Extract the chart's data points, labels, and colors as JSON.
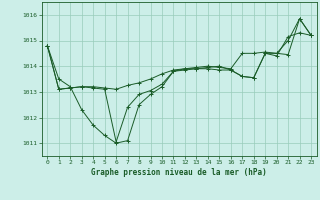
{
  "title": "Graphe pression niveau de la mer (hPa)",
  "bg_color": "#cceee8",
  "grid_color": "#99ccbb",
  "line_color": "#1a5c28",
  "xlim": [
    -0.5,
    23.5
  ],
  "ylim": [
    1010.5,
    1016.5
  ],
  "yticks": [
    1011,
    1012,
    1013,
    1014,
    1015,
    1016
  ],
  "xticks": [
    0,
    1,
    2,
    3,
    4,
    5,
    6,
    7,
    8,
    9,
    10,
    11,
    12,
    13,
    14,
    15,
    16,
    17,
    18,
    19,
    20,
    21,
    22,
    23
  ],
  "series": [
    [
      1014.8,
      1013.5,
      1013.2,
      1012.3,
      1011.7,
      1011.3,
      1011.0,
      1011.1,
      1012.5,
      1012.9,
      1013.2,
      1013.8,
      1013.85,
      1013.9,
      1013.9,
      1013.85,
      1013.85,
      1013.6,
      1013.55,
      1014.5,
      1014.4,
      1015.15,
      1015.3,
      1015.2
    ],
    [
      1014.8,
      1013.1,
      1013.15,
      1013.2,
      1013.2,
      1013.15,
      1013.1,
      1013.25,
      1013.35,
      1013.5,
      1013.7,
      1013.85,
      1013.9,
      1013.95,
      1014.0,
      1013.95,
      1013.9,
      1014.5,
      1014.5,
      1014.55,
      1014.5,
      1015.0,
      1015.85,
      1015.2
    ],
    [
      1014.8,
      1013.1,
      1013.15,
      1013.2,
      1013.15,
      1013.1,
      1011.05,
      1012.4,
      1012.9,
      1013.05,
      1013.3,
      1013.8,
      1013.9,
      1013.9,
      1013.95,
      1014.0,
      1013.85,
      1013.6,
      1013.55,
      1014.5,
      1014.5,
      1014.45,
      1015.85,
      1015.2
    ]
  ],
  "title_fontsize": 5.5,
  "tick_fontsize": 4.5
}
